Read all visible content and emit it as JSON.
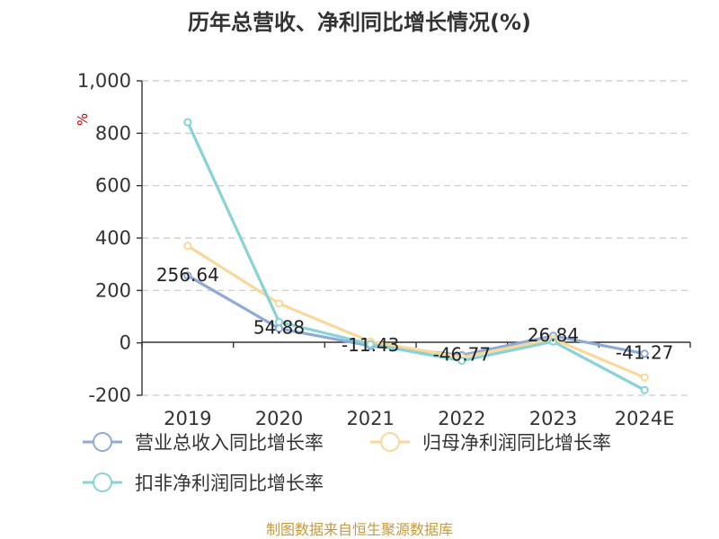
{
  "chart_data": {
    "type": "line",
    "title": "历年总营收、净利同比增长情况(%)",
    "unit": "%",
    "categories": [
      "2019",
      "2020",
      "2021",
      "2022",
      "2023",
      "2024E"
    ],
    "ylim": [
      -200,
      1000
    ],
    "yticks": [
      -200,
      0,
      200,
      400,
      600,
      800,
      1000
    ],
    "ytick_labels": [
      "-200",
      "0",
      "200",
      "400",
      "600",
      "800",
      "1,000"
    ],
    "grid": true,
    "legend_position": "bottom",
    "series": [
      {
        "name": "营业总收入同比增长率",
        "color": "#8eaad6",
        "values": [
          256.64,
          54.88,
          -11.43,
          -46.77,
          26.84,
          -41.27
        ],
        "labels": [
          "256.64",
          "54.88",
          "-11.43",
          "-46.77",
          "26.84",
          "-41.27"
        ]
      },
      {
        "name": "归母净利润同比增长率",
        "color": "#f8d99a",
        "values": [
          370,
          150,
          5,
          -55,
          15,
          -132
        ]
      },
      {
        "name": "扣非净利润同比增长率",
        "color": "#88d3d6",
        "values": [
          842,
          80,
          -5,
          -68,
          5,
          -180
        ]
      }
    ]
  },
  "footer": {
    "source": "制图数据来自恒生聚源数据库"
  }
}
